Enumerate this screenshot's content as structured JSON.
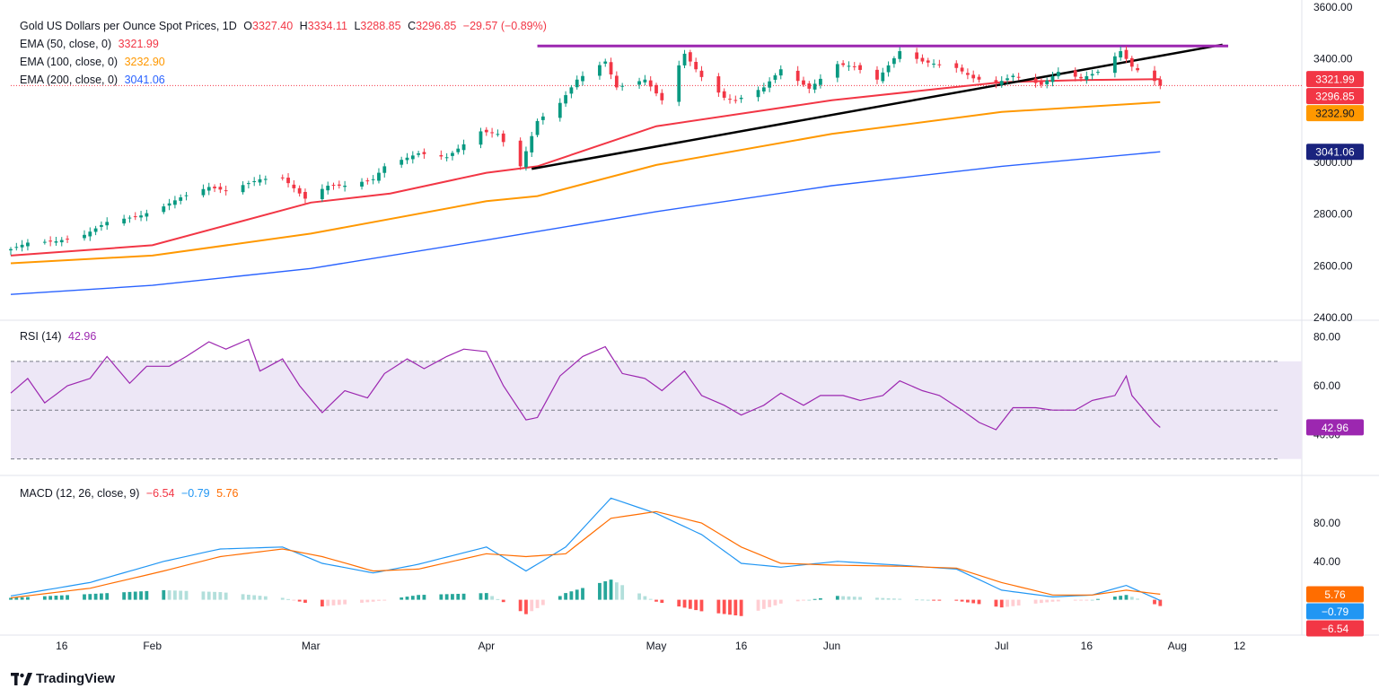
{
  "header": {
    "symbol_line": "Gold US Dollars per Ounce Spot Prices, 1D",
    "open_label": "O",
    "open": "3327.40",
    "high_label": "H",
    "high": "3334.11",
    "low_label": "L",
    "low": "3288.85",
    "close_label": "C",
    "close": "3296.85",
    "change": "−29.57 (−0.89%)",
    "change_color": "#f23645"
  },
  "legend": {
    "ema50": {
      "label": "EMA (50, close, 0)",
      "value": "3321.99",
      "color": "#f23645"
    },
    "ema100": {
      "label": "EMA (100, close, 0)",
      "value": "3232.90",
      "color": "#ff9800"
    },
    "ema200": {
      "label": "EMA (200, close, 0)",
      "value": "3041.06",
      "color": "#2962ff"
    },
    "rsi": {
      "label": "RSI (14)",
      "value": "42.96",
      "color": "#9c27b0"
    },
    "macd": {
      "label": "MACD (12, 26, close, 9)",
      "v1": "−6.54",
      "v2": "−0.79",
      "v3": "5.76"
    }
  },
  "brand": "TradingView",
  "chart_data": {
    "type": "candlestick",
    "x_ticks": [
      "16",
      "Feb",
      "Mar",
      "Apr",
      "May",
      "16",
      "Jun",
      "Jul",
      "16",
      "Aug",
      "12"
    ],
    "x_tick_dates": [
      "2025-01-16",
      "2025-02-01",
      "2025-03-01",
      "2025-04-01",
      "2025-05-01",
      "2025-05-16",
      "2025-06-01",
      "2025-07-01",
      "2025-07-16",
      "2025-08-01",
      "2025-08-12"
    ],
    "x_range": [
      "2025-01-07",
      "2025-08-23"
    ],
    "price_axis": {
      "range": [
        2390,
        3600
      ],
      "ticks": [
        "2400.00",
        "2600.00",
        "2800.00",
        "3000.00",
        "3200.00",
        "3400.00",
        "3600.00"
      ]
    },
    "rsi_axis": {
      "range": [
        24,
        85
      ],
      "ticks": [
        "40.00",
        "60.00",
        "80.00"
      ],
      "levels": [
        70,
        50,
        30
      ]
    },
    "macd_axis": {
      "range": [
        -35,
        125
      ],
      "ticks": [
        "40.00",
        "80.00"
      ]
    },
    "price_close_anchors": [
      [
        "2025-01-07",
        2665
      ],
      [
        "2025-01-10",
        2690
      ],
      [
        "2025-01-15",
        2695
      ],
      [
        "2025-01-20",
        2720
      ],
      [
        "2025-01-24",
        2770
      ],
      [
        "2025-01-30",
        2795
      ],
      [
        "2025-02-03",
        2830
      ],
      [
        "2025-02-06",
        2865
      ],
      [
        "2025-02-11",
        2905
      ],
      [
        "2025-02-14",
        2890
      ],
      [
        "2025-02-20",
        2935
      ],
      [
        "2025-02-24",
        2940
      ],
      [
        "2025-02-28",
        2860
      ],
      [
        "2025-03-04",
        2910
      ],
      [
        "2025-03-07",
        2910
      ],
      [
        "2025-03-12",
        2935
      ],
      [
        "2025-03-14",
        2985
      ],
      [
        "2025-03-20",
        3035
      ],
      [
        "2025-03-25",
        3020
      ],
      [
        "2025-03-31",
        3120
      ],
      [
        "2025-04-03",
        3110
      ],
      [
        "2025-04-07",
        2985
      ],
      [
        "2025-04-10",
        3160
      ],
      [
        "2025-04-14",
        3230
      ],
      [
        "2025-04-17",
        3320
      ],
      [
        "2025-04-22",
        3390
      ],
      [
        "2025-04-24",
        3290
      ],
      [
        "2025-04-29",
        3320
      ],
      [
        "2025-05-02",
        3240
      ],
      [
        "2025-05-06",
        3420
      ],
      [
        "2025-05-09",
        3330
      ],
      [
        "2025-05-13",
        3250
      ],
      [
        "2025-05-15",
        3240
      ],
      [
        "2025-05-20",
        3290
      ],
      [
        "2025-05-23",
        3360
      ],
      [
        "2025-05-28",
        3285
      ],
      [
        "2025-06-02",
        3380
      ],
      [
        "2025-06-05",
        3370
      ],
      [
        "2025-06-09",
        3320
      ],
      [
        "2025-06-13",
        3430
      ],
      [
        "2025-06-17",
        3390
      ],
      [
        "2025-06-23",
        3365
      ],
      [
        "2025-06-26",
        3325
      ],
      [
        "2025-06-30",
        3305
      ],
      [
        "2025-07-03",
        3335
      ],
      [
        "2025-07-08",
        3300
      ],
      [
        "2025-07-11",
        3350
      ],
      [
        "2025-07-15",
        3325
      ],
      [
        "2025-07-18",
        3350
      ],
      [
        "2025-07-22",
        3430
      ],
      [
        "2025-07-24",
        3370
      ],
      [
        "2025-07-28",
        3315
      ],
      [
        "2025-07-29",
        3296.85
      ]
    ],
    "ema_series": [
      {
        "name": "EMA (50, close, 0)",
        "points": [
          [
            "2025-01-07",
            2640
          ],
          [
            "2025-02-01",
            2680
          ],
          [
            "2025-03-01",
            2845
          ],
          [
            "2025-03-15",
            2880
          ],
          [
            "2025-04-01",
            2960
          ],
          [
            "2025-04-10",
            2985
          ],
          [
            "2025-05-01",
            3140
          ],
          [
            "2025-06-01",
            3240
          ],
          [
            "2025-06-20",
            3285
          ],
          [
            "2025-07-01",
            3310
          ],
          [
            "2025-07-15",
            3318
          ],
          [
            "2025-07-29",
            3321.99
          ]
        ]
      },
      {
        "name": "EMA (100, close, 0)",
        "points": [
          [
            "2025-01-07",
            2610
          ],
          [
            "2025-02-01",
            2640
          ],
          [
            "2025-03-01",
            2725
          ],
          [
            "2025-04-01",
            2850
          ],
          [
            "2025-04-10",
            2870
          ],
          [
            "2025-05-01",
            2990
          ],
          [
            "2025-06-01",
            3110
          ],
          [
            "2025-07-01",
            3195
          ],
          [
            "2025-07-29",
            3232.9
          ]
        ]
      },
      {
        "name": "EMA (200, close, 0)",
        "points": [
          [
            "2025-01-07",
            2490
          ],
          [
            "2025-02-01",
            2525
          ],
          [
            "2025-03-01",
            2590
          ],
          [
            "2025-04-01",
            2700
          ],
          [
            "2025-05-01",
            2810
          ],
          [
            "2025-06-01",
            2910
          ],
          [
            "2025-07-01",
            2985
          ],
          [
            "2025-07-29",
            3041.06
          ]
        ]
      }
    ],
    "trendlines": [
      {
        "from": [
          "2025-04-09",
          2975
        ],
        "to": [
          "2025-08-09",
          3455
        ]
      },
      {
        "from": [
          "2025-04-10",
          3450
        ],
        "to": [
          "2025-08-10",
          3450
        ]
      }
    ],
    "rsi_anchors": [
      [
        "2025-01-07",
        57
      ],
      [
        "2025-01-10",
        63
      ],
      [
        "2025-01-13",
        53
      ],
      [
        "2025-01-17",
        60
      ],
      [
        "2025-01-21",
        63
      ],
      [
        "2025-01-24",
        72
      ],
      [
        "2025-01-28",
        61
      ],
      [
        "2025-01-31",
        68
      ],
      [
        "2025-02-04",
        68
      ],
      [
        "2025-02-07",
        72
      ],
      [
        "2025-02-11",
        78
      ],
      [
        "2025-02-14",
        75
      ],
      [
        "2025-02-18",
        79
      ],
      [
        "2025-02-20",
        66
      ],
      [
        "2025-02-24",
        71
      ],
      [
        "2025-02-27",
        60
      ],
      [
        "2025-03-03",
        49
      ],
      [
        "2025-03-07",
        58
      ],
      [
        "2025-03-11",
        55
      ],
      [
        "2025-03-14",
        65
      ],
      [
        "2025-03-18",
        71
      ],
      [
        "2025-03-21",
        67
      ],
      [
        "2025-03-25",
        72
      ],
      [
        "2025-03-28",
        75
      ],
      [
        "2025-04-01",
        74
      ],
      [
        "2025-04-04",
        60
      ],
      [
        "2025-04-08",
        46
      ],
      [
        "2025-04-10",
        47
      ],
      [
        "2025-04-14",
        64
      ],
      [
        "2025-04-18",
        72
      ],
      [
        "2025-04-22",
        76
      ],
      [
        "2025-04-25",
        65
      ],
      [
        "2025-04-29",
        63
      ],
      [
        "2025-05-02",
        58
      ],
      [
        "2025-05-06",
        66
      ],
      [
        "2025-05-09",
        56
      ],
      [
        "2025-05-13",
        52
      ],
      [
        "2025-05-16",
        48
      ],
      [
        "2025-05-20",
        52
      ],
      [
        "2025-05-23",
        57
      ],
      [
        "2025-05-27",
        52
      ],
      [
        "2025-05-30",
        56
      ],
      [
        "2025-06-03",
        56
      ],
      [
        "2025-06-06",
        54
      ],
      [
        "2025-06-10",
        56
      ],
      [
        "2025-06-13",
        62
      ],
      [
        "2025-06-17",
        58
      ],
      [
        "2025-06-20",
        56
      ],
      [
        "2025-06-24",
        50
      ],
      [
        "2025-06-27",
        45
      ],
      [
        "2025-06-30",
        42
      ],
      [
        "2025-07-03",
        51
      ],
      [
        "2025-07-07",
        51
      ],
      [
        "2025-07-10",
        50
      ],
      [
        "2025-07-14",
        50
      ],
      [
        "2025-07-17",
        54
      ],
      [
        "2025-07-21",
        56
      ],
      [
        "2025-07-23",
        64
      ],
      [
        "2025-07-24",
        56
      ],
      [
        "2025-07-28",
        45
      ],
      [
        "2025-07-29",
        42.96
      ]
    ],
    "macd_line_anchors": [
      [
        "2025-01-07",
        4
      ],
      [
        "2025-01-21",
        18
      ],
      [
        "2025-02-03",
        40
      ],
      [
        "2025-02-13",
        53
      ],
      [
        "2025-02-24",
        55
      ],
      [
        "2025-03-03",
        38
      ],
      [
        "2025-03-12",
        28
      ],
      [
        "2025-03-20",
        37
      ],
      [
        "2025-04-01",
        55
      ],
      [
        "2025-04-08",
        30
      ],
      [
        "2025-04-15",
        55
      ],
      [
        "2025-04-23",
        106
      ],
      [
        "2025-05-01",
        90
      ],
      [
        "2025-05-09",
        68
      ],
      [
        "2025-05-16",
        38
      ],
      [
        "2025-05-23",
        34
      ],
      [
        "2025-06-02",
        40
      ],
      [
        "2025-06-13",
        36
      ],
      [
        "2025-06-23",
        32
      ],
      [
        "2025-07-01",
        10
      ],
      [
        "2025-07-10",
        3
      ],
      [
        "2025-07-17",
        5
      ],
      [
        "2025-07-23",
        15
      ],
      [
        "2025-07-29",
        -0.79
      ]
    ],
    "macd_signal_anchors": [
      [
        "2025-01-07",
        2
      ],
      [
        "2025-01-21",
        12
      ],
      [
        "2025-02-03",
        30
      ],
      [
        "2025-02-13",
        45
      ],
      [
        "2025-02-24",
        53
      ],
      [
        "2025-03-03",
        45
      ],
      [
        "2025-03-12",
        30
      ],
      [
        "2025-03-20",
        32
      ],
      [
        "2025-04-01",
        48
      ],
      [
        "2025-04-08",
        45
      ],
      [
        "2025-04-15",
        48
      ],
      [
        "2025-04-23",
        85
      ],
      [
        "2025-05-01",
        92
      ],
      [
        "2025-05-09",
        80
      ],
      [
        "2025-05-16",
        55
      ],
      [
        "2025-05-23",
        38
      ],
      [
        "2025-06-02",
        36
      ],
      [
        "2025-06-13",
        35
      ],
      [
        "2025-06-23",
        33
      ],
      [
        "2025-07-01",
        18
      ],
      [
        "2025-07-10",
        5
      ],
      [
        "2025-07-17",
        5
      ],
      [
        "2025-07-23",
        10
      ],
      [
        "2025-07-29",
        5.76
      ]
    ],
    "price_labels": [
      {
        "text": "3321.99",
        "value": 3321.99,
        "color": "#f23645",
        "text_color": "#ffffff"
      },
      {
        "text": "3296.85",
        "value": 3296.85,
        "color": "#f23645",
        "text_color": "#ffffff"
      },
      {
        "text": "3232.90",
        "value": 3232.9,
        "color": "#ff9800",
        "text_color": "#131722"
      },
      {
        "text": "3041.06",
        "value": 3041.06,
        "color": "#1a237e",
        "text_color": "#ffffff"
      }
    ],
    "rsi_label": {
      "text": "42.96",
      "value": 42.96,
      "color": "#9c27b0"
    },
    "macd_labels": [
      {
        "text": "5.76",
        "value": 5.76,
        "color": "#ff6d00"
      },
      {
        "text": "−0.79",
        "value": -0.79,
        "color": "#2196f3"
      },
      {
        "text": "−6.54",
        "value": -6.54,
        "color": "#f23645"
      }
    ],
    "colors": {
      "up": "#089981",
      "down": "#f23645",
      "hist_up_strong": "#26a69a",
      "hist_up_weak": "#b2dfdb",
      "hist_down_strong": "#ff5252",
      "hist_down_weak": "#ffcdd2",
      "rsi_band": "#ede7f6",
      "grid": "#e0e3eb",
      "resistance": "#9c27b0",
      "trend": "#000000",
      "macd": "#2196f3",
      "signal": "#ff6d00"
    }
  }
}
